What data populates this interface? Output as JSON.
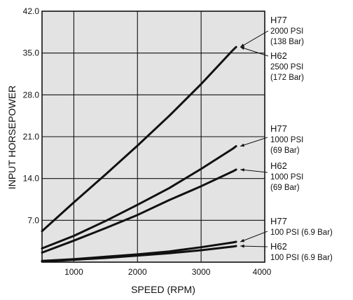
{
  "chart_data": {
    "type": "line",
    "xlabel": "SPEED (RPM)",
    "ylabel": "INPUT HORSEPOWER",
    "xlim": [
      500,
      4000
    ],
    "ylim": [
      0,
      42
    ],
    "xticks": [
      1000,
      2000,
      3000,
      4000
    ],
    "xtick_labels": [
      "1000",
      "2000",
      "3000",
      "4000"
    ],
    "yticks": [
      7,
      14,
      21,
      28,
      35,
      42
    ],
    "ytick_labels": [
      "7.0",
      "14.0",
      "21.0",
      "28.0",
      "35.0",
      "42.0"
    ],
    "grid": true,
    "background_color": "#e3e3e3",
    "line_color": "#111111",
    "series": [
      {
        "name": "H77 2000 PSI (138 Bar)",
        "x": [
          500,
          1000,
          1500,
          2000,
          2500,
          3000,
          3500,
          3550
        ],
        "y": [
          5.2,
          10.0,
          14.7,
          19.5,
          24.5,
          29.8,
          35.5,
          36.0
        ]
      },
      {
        "name": "H62 2500 PSI (172 Bar)",
        "x": [
          500,
          1000,
          1500,
          2000,
          2500,
          3000,
          3500,
          3550
        ],
        "y": [
          5.2,
          10.0,
          14.7,
          19.5,
          24.5,
          29.8,
          35.5,
          36.0
        ]
      },
      {
        "name": "H77 1000 PSI (69 Bar)",
        "x": [
          500,
          1000,
          1500,
          2000,
          2500,
          3000,
          3500,
          3550
        ],
        "y": [
          2.3,
          4.4,
          6.9,
          9.6,
          12.4,
          15.6,
          19.0,
          19.4
        ]
      },
      {
        "name": "H62 1000 PSI (69 Bar)",
        "x": [
          500,
          1000,
          1500,
          2000,
          2500,
          3000,
          3500,
          3550
        ],
        "y": [
          1.6,
          3.6,
          5.7,
          7.9,
          10.4,
          12.7,
          15.2,
          15.5
        ]
      },
      {
        "name": "H77 100 PSI (6.9 Bar)",
        "x": [
          500,
          1000,
          1500,
          2000,
          2500,
          3000,
          3500,
          3550
        ],
        "y": [
          0.2,
          0.5,
          0.9,
          1.3,
          1.8,
          2.5,
          3.3,
          3.4
        ]
      },
      {
        "name": "H62 100 PSI (6.9 Bar)",
        "x": [
          500,
          1000,
          1500,
          2000,
          2500,
          3000,
          3500,
          3550
        ],
        "y": [
          0.1,
          0.4,
          0.7,
          1.1,
          1.5,
          2.0,
          2.6,
          2.7
        ]
      }
    ],
    "annotations": [
      {
        "id": "a1",
        "lines": [
          "H77",
          "2000 PSI",
          "(138 Bar)"
        ],
        "target": {
          "x": 3550,
          "y": 36.0
        }
      },
      {
        "id": "a2",
        "lines": [
          "H62",
          "2500 PSI",
          "(172 Bar)"
        ],
        "target": {
          "x": 3550,
          "y": 36.0
        }
      },
      {
        "id": "a3",
        "lines": [
          "H77",
          "1000 PSI",
          "(69 Bar)"
        ],
        "target": {
          "x": 3550,
          "y": 19.4
        }
      },
      {
        "id": "a4",
        "lines": [
          "H62",
          "1000 PSI",
          "(69 Bar)"
        ],
        "target": {
          "x": 3550,
          "y": 15.5
        }
      },
      {
        "id": "a5",
        "lines": [
          "H77",
          "100 PSI (6.9 Bar)"
        ],
        "target": {
          "x": 3550,
          "y": 3.4
        }
      },
      {
        "id": "a6",
        "lines": [
          "H62",
          "100 PSI (6.9 Bar)"
        ],
        "target": {
          "x": 3550,
          "y": 2.7
        }
      }
    ]
  }
}
